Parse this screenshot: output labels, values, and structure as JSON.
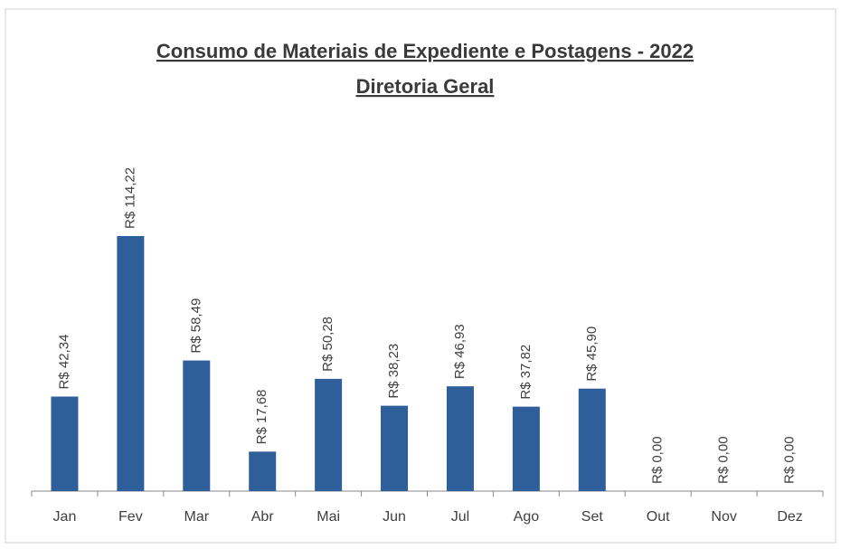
{
  "chart_data": {
    "type": "bar",
    "title": "Consumo de Materiais de Expediente e Postagens - 2022",
    "subtitle": "Diretoria Geral",
    "categories": [
      "Jan",
      "Fev",
      "Mar",
      "Abr",
      "Mai",
      "Jun",
      "Jul",
      "Ago",
      "Set",
      "Out",
      "Nov",
      "Dez"
    ],
    "values": [
      42.34,
      114.22,
      58.49,
      17.68,
      50.28,
      38.23,
      46.93,
      37.82,
      45.9,
      0,
      0,
      0
    ],
    "value_labels": [
      "R$ 42,34",
      "R$ 114,22",
      "R$ 58,49",
      "R$ 17,68",
      "R$ 50,28",
      "R$ 38,23",
      "R$ 46,93",
      "R$ 37,82",
      "R$ 45,90",
      "R$ 0,00",
      "R$ 0,00",
      "R$ 0,00"
    ],
    "color": "#2e5f9a"
  }
}
